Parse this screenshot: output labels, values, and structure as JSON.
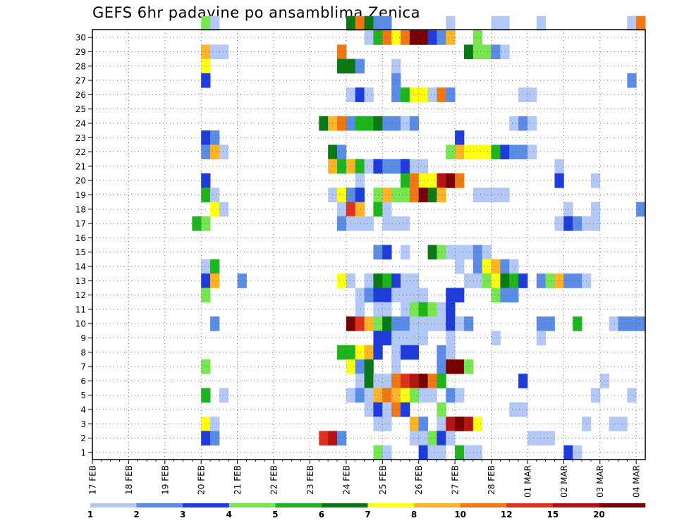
{
  "chart_data": {
    "type": "heatmap",
    "title": "GEFS 6hr padavine po ansamblima Zenica",
    "x_tick_labels": [
      "17 FEB",
      "18 FEB",
      "19 FEB",
      "20 FEB",
      "21 FEB",
      "22 FEB",
      "23 FEB",
      "24 FEB",
      "25 FEB",
      "26 FEB",
      "27 FEB",
      "28 FEB",
      "01 MAR",
      "02 MAR",
      "03 MAR",
      "04 MAR"
    ],
    "y_tick_labels": [
      "1",
      "2",
      "3",
      "4",
      "5",
      "6",
      "7",
      "8",
      "9",
      "10",
      "11",
      "12",
      "13",
      "14",
      "15",
      "16",
      "17",
      "18",
      "19",
      "20",
      "21",
      "22",
      "23",
      "24",
      "25",
      "26",
      "27",
      "28",
      "29",
      "30"
    ],
    "grid": true,
    "legend": {
      "placement": "bottom",
      "labels": [
        "1",
        "2",
        "3",
        "4",
        "5",
        "6",
        "7",
        "8",
        "10",
        "12",
        "15",
        "20"
      ],
      "colors": [
        "#b4c8f5",
        "#5a8ce6",
        "#1e3cdc",
        "#78e650",
        "#1eb41e",
        "#0a7814",
        "#ffff14",
        "#ffb428",
        "#f07814",
        "#dc321e",
        "#b41414",
        "#780000"
      ]
    },
    "palette": [
      "#ffffff",
      "#b4c8f5",
      "#5a8ce6",
      "#1e3cdc",
      "#78e650",
      "#1eb41e",
      "#0a7814",
      "#ffff14",
      "#ffb428",
      "#f07814",
      "#dc321e",
      "#b41414",
      "#780000"
    ],
    "time_steps": {
      "start": "17 FEB 00",
      "step_hours": 6,
      "count": 61
    },
    "cells": [
      [
        30,
        12,
        4
      ],
      [
        30,
        13,
        1
      ],
      [
        30,
        28,
        6
      ],
      [
        30,
        29,
        9
      ],
      [
        30,
        30,
        6
      ],
      [
        30,
        31,
        2
      ],
      [
        30,
        32,
        2
      ],
      [
        30,
        39,
        1
      ],
      [
        30,
        44,
        1
      ],
      [
        30,
        45,
        1
      ],
      [
        30,
        49,
        1
      ],
      [
        30,
        59,
        1
      ],
      [
        30,
        60,
        9
      ],
      [
        29,
        30,
        1
      ],
      [
        29,
        31,
        5
      ],
      [
        29,
        32,
        9
      ],
      [
        29,
        33,
        7
      ],
      [
        29,
        34,
        9
      ],
      [
        29,
        35,
        12
      ],
      [
        29,
        36,
        12
      ],
      [
        29,
        37,
        3
      ],
      [
        29,
        38,
        2
      ],
      [
        29,
        39,
        8
      ],
      [
        29,
        42,
        4
      ],
      [
        28,
        12,
        8
      ],
      [
        28,
        13,
        1
      ],
      [
        28,
        14,
        1
      ],
      [
        28,
        27,
        9
      ],
      [
        28,
        41,
        6
      ],
      [
        28,
        42,
        4
      ],
      [
        28,
        43,
        4
      ],
      [
        28,
        44,
        2
      ],
      [
        28,
        45,
        1
      ],
      [
        27,
        12,
        7
      ],
      [
        27,
        27,
        6
      ],
      [
        27,
        28,
        6
      ],
      [
        27,
        29,
        2
      ],
      [
        27,
        33,
        1
      ],
      [
        26,
        12,
        3
      ],
      [
        26,
        33,
        2
      ],
      [
        26,
        59,
        2
      ],
      [
        25,
        28,
        1
      ],
      [
        25,
        29,
        3
      ],
      [
        25,
        30,
        1
      ],
      [
        25,
        33,
        2
      ],
      [
        25,
        34,
        5
      ],
      [
        25,
        35,
        7
      ],
      [
        25,
        36,
        7
      ],
      [
        25,
        37,
        1
      ],
      [
        25,
        38,
        9
      ],
      [
        25,
        39,
        2
      ],
      [
        25,
        47,
        1
      ],
      [
        25,
        48,
        1
      ],
      [
        23,
        25,
        6
      ],
      [
        23,
        26,
        8
      ],
      [
        23,
        27,
        9
      ],
      [
        23,
        28,
        2
      ],
      [
        23,
        29,
        5
      ],
      [
        23,
        30,
        5
      ],
      [
        23,
        31,
        6
      ],
      [
        23,
        32,
        2
      ],
      [
        23,
        33,
        2
      ],
      [
        23,
        34,
        1
      ],
      [
        23,
        35,
        2
      ],
      [
        23,
        46,
        1
      ],
      [
        23,
        47,
        2
      ],
      [
        23,
        48,
        1
      ],
      [
        22,
        12,
        3
      ],
      [
        22,
        13,
        2
      ],
      [
        22,
        40,
        3
      ],
      [
        21,
        12,
        2
      ],
      [
        21,
        13,
        8
      ],
      [
        21,
        14,
        1
      ],
      [
        21,
        26,
        6
      ],
      [
        21,
        27,
        2
      ],
      [
        21,
        39,
        4
      ],
      [
        21,
        40,
        8
      ],
      [
        21,
        41,
        7
      ],
      [
        21,
        42,
        7
      ],
      [
        21,
        43,
        7
      ],
      [
        21,
        44,
        5
      ],
      [
        21,
        45,
        3
      ],
      [
        21,
        46,
        2
      ],
      [
        21,
        47,
        2
      ],
      [
        21,
        48,
        1
      ],
      [
        20,
        26,
        8
      ],
      [
        20,
        27,
        5
      ],
      [
        20,
        28,
        8
      ],
      [
        20,
        29,
        5
      ],
      [
        20,
        30,
        1
      ],
      [
        20,
        31,
        3
      ],
      [
        20,
        32,
        2
      ],
      [
        20,
        33,
        2
      ],
      [
        20,
        34,
        3
      ],
      [
        20,
        35,
        1
      ],
      [
        20,
        36,
        1
      ],
      [
        20,
        51,
        1
      ],
      [
        19,
        12,
        3
      ],
      [
        19,
        29,
        1
      ],
      [
        19,
        34,
        5
      ],
      [
        19,
        35,
        9
      ],
      [
        19,
        36,
        7
      ],
      [
        19,
        37,
        7
      ],
      [
        19,
        38,
        11
      ],
      [
        19,
        39,
        12
      ],
      [
        19,
        40,
        9
      ],
      [
        19,
        51,
        3
      ],
      [
        19,
        55,
        1
      ],
      [
        18,
        12,
        5
      ],
      [
        18,
        13,
        1
      ],
      [
        18,
        26,
        1
      ],
      [
        18,
        27,
        7
      ],
      [
        18,
        28,
        2
      ],
      [
        18,
        29,
        3
      ],
      [
        18,
        31,
        4
      ],
      [
        18,
        32,
        8
      ],
      [
        18,
        33,
        4
      ],
      [
        18,
        34,
        4
      ],
      [
        18,
        35,
        9
      ],
      [
        18,
        36,
        12
      ],
      [
        18,
        37,
        6
      ],
      [
        18,
        38,
        8
      ],
      [
        18,
        42,
        1
      ],
      [
        18,
        43,
        1
      ],
      [
        18,
        44,
        1
      ],
      [
        18,
        45,
        1
      ],
      [
        17,
        13,
        7
      ],
      [
        17,
        14,
        1
      ],
      [
        17,
        27,
        1
      ],
      [
        17,
        28,
        10
      ],
      [
        17,
        29,
        8
      ],
      [
        17,
        31,
        5
      ],
      [
        17,
        32,
        1
      ],
      [
        17,
        52,
        1
      ],
      [
        17,
        55,
        1
      ],
      [
        17,
        60,
        2
      ],
      [
        16,
        11,
        5
      ],
      [
        16,
        12,
        4
      ],
      [
        16,
        27,
        2
      ],
      [
        16,
        28,
        1
      ],
      [
        16,
        29,
        1
      ],
      [
        16,
        30,
        1
      ],
      [
        16,
        32,
        1
      ],
      [
        16,
        33,
        1
      ],
      [
        16,
        34,
        1
      ],
      [
        16,
        51,
        1
      ],
      [
        16,
        52,
        3
      ],
      [
        16,
        53,
        2
      ],
      [
        16,
        54,
        1
      ],
      [
        16,
        55,
        1
      ],
      [
        14,
        31,
        2
      ],
      [
        14,
        32,
        3
      ],
      [
        14,
        34,
        1
      ],
      [
        14,
        37,
        6
      ],
      [
        14,
        38,
        4
      ],
      [
        14,
        39,
        1
      ],
      [
        14,
        40,
        1
      ],
      [
        14,
        41,
        1
      ],
      [
        14,
        42,
        2
      ],
      [
        14,
        43,
        1
      ],
      [
        13,
        12,
        1
      ],
      [
        13,
        13,
        5
      ],
      [
        13,
        40,
        1
      ],
      [
        13,
        42,
        2
      ],
      [
        13,
        43,
        7
      ],
      [
        13,
        44,
        8
      ],
      [
        13,
        45,
        2
      ],
      [
        13,
        46,
        1
      ],
      [
        12,
        12,
        3
      ],
      [
        12,
        13,
        8
      ],
      [
        12,
        16,
        2
      ],
      [
        12,
        27,
        7
      ],
      [
        12,
        28,
        1
      ],
      [
        12,
        30,
        1
      ],
      [
        12,
        31,
        6
      ],
      [
        12,
        32,
        5
      ],
      [
        12,
        33,
        3
      ],
      [
        12,
        34,
        1
      ],
      [
        12,
        35,
        1
      ],
      [
        12,
        41,
        1
      ],
      [
        12,
        42,
        1
      ],
      [
        12,
        43,
        4
      ],
      [
        12,
        44,
        7
      ],
      [
        12,
        45,
        6
      ],
      [
        12,
        46,
        5
      ],
      [
        12,
        47,
        3
      ],
      [
        12,
        49,
        2
      ],
      [
        12,
        50,
        4
      ],
      [
        12,
        51,
        8
      ],
      [
        12,
        52,
        2
      ],
      [
        12,
        53,
        2
      ],
      [
        12,
        54,
        1
      ],
      [
        11,
        12,
        4
      ],
      [
        11,
        29,
        1
      ],
      [
        11,
        30,
        2
      ],
      [
        11,
        31,
        3
      ],
      [
        11,
        32,
        3
      ],
      [
        11,
        33,
        1
      ],
      [
        11,
        34,
        1
      ],
      [
        11,
        35,
        1
      ],
      [
        11,
        36,
        1
      ],
      [
        11,
        39,
        3
      ],
      [
        11,
        40,
        3
      ],
      [
        11,
        44,
        4
      ],
      [
        11,
        45,
        2
      ],
      [
        11,
        46,
        2
      ],
      [
        10,
        29,
        1
      ],
      [
        10,
        31,
        1
      ],
      [
        10,
        32,
        1
      ],
      [
        10,
        34,
        1
      ],
      [
        10,
        35,
        4
      ],
      [
        10,
        36,
        5
      ],
      [
        10,
        37,
        4
      ],
      [
        10,
        38,
        1
      ],
      [
        10,
        39,
        3
      ],
      [
        9,
        13,
        2
      ],
      [
        9,
        28,
        12
      ],
      [
        9,
        29,
        10
      ],
      [
        9,
        30,
        8
      ],
      [
        9,
        31,
        4
      ],
      [
        9,
        32,
        6
      ],
      [
        9,
        33,
        2
      ],
      [
        9,
        34,
        2
      ],
      [
        9,
        35,
        1
      ],
      [
        9,
        36,
        1
      ],
      [
        9,
        37,
        1
      ],
      [
        9,
        38,
        1
      ],
      [
        9,
        39,
        3
      ],
      [
        9,
        40,
        1
      ],
      [
        9,
        41,
        2
      ],
      [
        9,
        49,
        2
      ],
      [
        9,
        50,
        2
      ],
      [
        9,
        53,
        5
      ],
      [
        9,
        57,
        1
      ],
      [
        9,
        58,
        2
      ],
      [
        9,
        59,
        2
      ],
      [
        9,
        60,
        2
      ],
      [
        8,
        31,
        3
      ],
      [
        8,
        32,
        3
      ],
      [
        8,
        33,
        1
      ],
      [
        8,
        34,
        1
      ],
      [
        8,
        35,
        1
      ],
      [
        8,
        36,
        1
      ],
      [
        8,
        39,
        1
      ],
      [
        8,
        44,
        1
      ],
      [
        8,
        49,
        1
      ],
      [
        7,
        27,
        5
      ],
      [
        7,
        28,
        5
      ],
      [
        7,
        29,
        7
      ],
      [
        7,
        30,
        8
      ],
      [
        7,
        31,
        3
      ],
      [
        7,
        33,
        1
      ],
      [
        7,
        34,
        3
      ],
      [
        7,
        35,
        3
      ],
      [
        7,
        38,
        2
      ],
      [
        7,
        39,
        1
      ],
      [
        6,
        12,
        4
      ],
      [
        6,
        28,
        7
      ],
      [
        6,
        29,
        2
      ],
      [
        6,
        30,
        6
      ],
      [
        6,
        33,
        1
      ],
      [
        6,
        38,
        2
      ],
      [
        6,
        39,
        12
      ],
      [
        6,
        40,
        12
      ],
      [
        6,
        41,
        4
      ],
      [
        5,
        29,
        1
      ],
      [
        5,
        30,
        6
      ],
      [
        5,
        31,
        1
      ],
      [
        5,
        32,
        1
      ],
      [
        5,
        33,
        9
      ],
      [
        5,
        34,
        10
      ],
      [
        5,
        35,
        11
      ],
      [
        5,
        36,
        12
      ],
      [
        5,
        37,
        9
      ],
      [
        5,
        38,
        5
      ],
      [
        5,
        47,
        3
      ],
      [
        5,
        56,
        1
      ],
      [
        4,
        12,
        5
      ],
      [
        4,
        14,
        1
      ],
      [
        4,
        28,
        1
      ],
      [
        4,
        29,
        2
      ],
      [
        4,
        30,
        1
      ],
      [
        4,
        31,
        8
      ],
      [
        4,
        32,
        9
      ],
      [
        4,
        33,
        8
      ],
      [
        4,
        34,
        7
      ],
      [
        4,
        35,
        4
      ],
      [
        4,
        36,
        1
      ],
      [
        4,
        37,
        1
      ],
      [
        4,
        39,
        2
      ],
      [
        4,
        40,
        1
      ],
      [
        4,
        55,
        1
      ],
      [
        4,
        59,
        1
      ],
      [
        3,
        30,
        1
      ],
      [
        3,
        31,
        3
      ],
      [
        3,
        32,
        1
      ],
      [
        3,
        33,
        9
      ],
      [
        3,
        34,
        3
      ],
      [
        3,
        38,
        4
      ],
      [
        3,
        46,
        1
      ],
      [
        3,
        47,
        1
      ],
      [
        2,
        12,
        7
      ],
      [
        2,
        13,
        1
      ],
      [
        2,
        31,
        1
      ],
      [
        2,
        32,
        1
      ],
      [
        2,
        35,
        8
      ],
      [
        2,
        36,
        2
      ],
      [
        2,
        38,
        1
      ],
      [
        2,
        39,
        11
      ],
      [
        2,
        40,
        12
      ],
      [
        2,
        41,
        11
      ],
      [
        2,
        42,
        7
      ],
      [
        2,
        54,
        1
      ],
      [
        2,
        57,
        1
      ],
      [
        2,
        58,
        1
      ],
      [
        1,
        12,
        3
      ],
      [
        1,
        13,
        2
      ],
      [
        1,
        25,
        10
      ],
      [
        1,
        26,
        11
      ],
      [
        1,
        27,
        2
      ],
      [
        1,
        35,
        1
      ],
      [
        1,
        36,
        1
      ],
      [
        1,
        37,
        4
      ],
      [
        1,
        38,
        3
      ],
      [
        1,
        39,
        1
      ],
      [
        1,
        48,
        1
      ],
      [
        1,
        49,
        1
      ],
      [
        1,
        50,
        1
      ],
      [
        0,
        31,
        4
      ],
      [
        0,
        32,
        1
      ],
      [
        0,
        36,
        3
      ],
      [
        0,
        37,
        1
      ],
      [
        0,
        38,
        1
      ],
      [
        0,
        40,
        5
      ],
      [
        0,
        41,
        1
      ],
      [
        0,
        42,
        1
      ],
      [
        0,
        52,
        3
      ],
      [
        0,
        53,
        1
      ]
    ]
  }
}
